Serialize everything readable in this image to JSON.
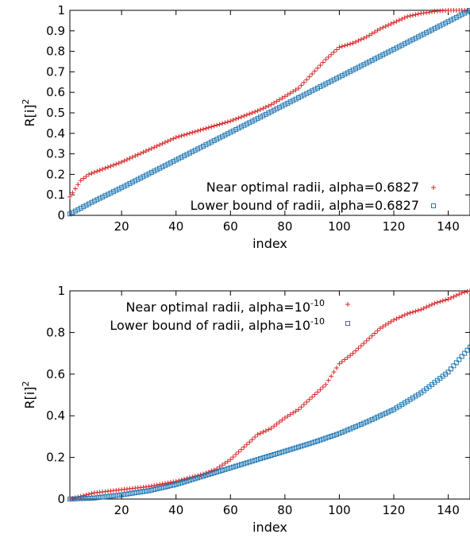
{
  "chart_data": [
    {
      "type": "scatter",
      "xlabel": "index",
      "ylabel": "R[i]",
      "ylabel_sup": "2",
      "xlim": [
        1,
        148
      ],
      "ylim": [
        0,
        1
      ],
      "xticks": [
        20,
        40,
        60,
        80,
        100,
        120,
        140
      ],
      "xtick_labels": [
        "20",
        "40",
        "60",
        "80",
        "100",
        "120",
        "140"
      ],
      "yticks": [
        0,
        0.1,
        0.2,
        0.3,
        0.4,
        0.5,
        0.6,
        0.7,
        0.8,
        0.9,
        1
      ],
      "ytick_labels": [
        "0",
        "0.1",
        "0.2",
        "0.3",
        "0.4",
        "0.5",
        "0.6",
        "0.7",
        "0.8",
        "0.9",
        "1"
      ],
      "grid": false,
      "legend_position": "bottom-right",
      "series": [
        {
          "name_main": "Near optimal radii, alpha=0.6827",
          "name_sup": "",
          "marker": "plus",
          "color": "#d62728",
          "anchors_x": [
            1,
            3,
            5,
            8,
            10,
            20,
            30,
            40,
            50,
            60,
            70,
            75,
            80,
            85,
            90,
            95,
            100,
            105,
            110,
            115,
            120,
            125,
            130,
            135,
            140,
            148
          ],
          "anchors_y": [
            0.09,
            0.13,
            0.17,
            0.2,
            0.21,
            0.26,
            0.32,
            0.38,
            0.42,
            0.46,
            0.51,
            0.54,
            0.58,
            0.62,
            0.69,
            0.76,
            0.82,
            0.84,
            0.87,
            0.91,
            0.94,
            0.97,
            0.985,
            0.995,
            1.0,
            1.0
          ]
        },
        {
          "name_main": "Lower bound of radii, alpha=0.6827",
          "name_sup": "",
          "marker": "square",
          "color": "#1f77b4",
          "anchors_x": [
            1,
            10,
            20,
            40,
            60,
            80,
            100,
            120,
            140,
            148
          ],
          "anchors_y": [
            0.007,
            0.07,
            0.135,
            0.27,
            0.405,
            0.54,
            0.675,
            0.81,
            0.945,
            1.0
          ]
        }
      ]
    },
    {
      "type": "scatter",
      "xlabel": "index",
      "ylabel": "R[i]",
      "ylabel_sup": "2",
      "xlim": [
        1,
        148
      ],
      "ylim": [
        0,
        1
      ],
      "xticks": [
        20,
        40,
        60,
        80,
        100,
        120,
        140
      ],
      "xtick_labels": [
        "20",
        "40",
        "60",
        "80",
        "100",
        "120",
        "140"
      ],
      "yticks": [
        0,
        0.2,
        0.4,
        0.6,
        0.8,
        1
      ],
      "ytick_labels": [
        "0",
        "0.2",
        "0.4",
        "0.6",
        "0.8",
        "1"
      ],
      "grid": false,
      "legend_position": "top-left",
      "series": [
        {
          "name_main": "Near optimal radii, alpha=10",
          "name_sup": "-10",
          "marker": "plus",
          "color": "#d62728",
          "anchors_x": [
            1,
            10,
            20,
            30,
            40,
            50,
            55,
            60,
            65,
            70,
            75,
            80,
            85,
            90,
            95,
            100,
            105,
            110,
            115,
            120,
            125,
            130,
            135,
            140,
            145,
            148
          ],
          "anchors_y": [
            0.0,
            0.03,
            0.045,
            0.06,
            0.085,
            0.12,
            0.145,
            0.19,
            0.25,
            0.31,
            0.34,
            0.39,
            0.43,
            0.49,
            0.55,
            0.65,
            0.7,
            0.76,
            0.82,
            0.86,
            0.89,
            0.91,
            0.94,
            0.96,
            0.99,
            1.0
          ]
        },
        {
          "name_main": "Lower bound of radii, alpha=10",
          "name_sup": "-10",
          "marker": "square",
          "color": "#1f77b4",
          "anchors_x": [
            1,
            10,
            20,
            30,
            40,
            50,
            60,
            70,
            80,
            90,
            100,
            110,
            120,
            130,
            140,
            148
          ],
          "anchors_y": [
            0.0,
            0.005,
            0.02,
            0.04,
            0.07,
            0.11,
            0.15,
            0.19,
            0.23,
            0.27,
            0.315,
            0.37,
            0.43,
            0.51,
            0.61,
            0.73
          ]
        }
      ]
    }
  ]
}
